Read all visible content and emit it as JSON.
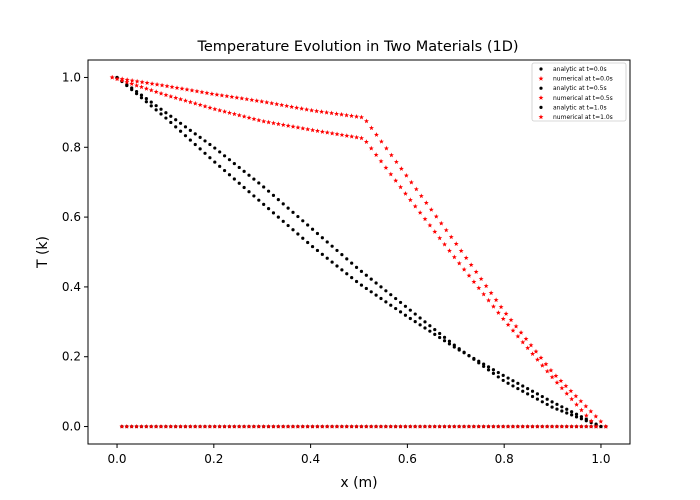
{
  "chart_data": {
    "type": "scatter",
    "title": "Temperature Evolution in Two Materials (1D)",
    "xlabel": "x (m)",
    "ylabel": "T (k)",
    "xlim": [
      -0.06,
      1.06
    ],
    "ylim": [
      -0.05,
      1.05
    ],
    "xticks": [
      "0.0",
      "0.2",
      "0.4",
      "0.6",
      "0.8",
      "1.0"
    ],
    "xtick_values": [
      0.0,
      0.2,
      0.4,
      0.6,
      0.8,
      1.0
    ],
    "yticks": [
      "0.0",
      "0.2",
      "0.4",
      "0.6",
      "0.8",
      "1.0"
    ],
    "ytick_values": [
      0.0,
      0.2,
      0.4,
      0.6,
      0.8,
      1.0
    ],
    "grid": false,
    "legend_position": "top-right",
    "series": [
      {
        "name": "analytic at t=0.0s",
        "kind": "analytic",
        "marker": "circle",
        "color": "#000000",
        "n": 100,
        "x0": 0.01,
        "x1": 1.01,
        "points": [
          [
            0.01,
            0
          ],
          [
            0.5,
            0
          ],
          [
            1.01,
            0
          ]
        ]
      },
      {
        "name": "numerical at t=0.0s",
        "kind": "numerical",
        "marker": "star",
        "color": "#ff0000",
        "n": 100,
        "x0": 0.01,
        "x1": 1.01,
        "points": [
          [
            0.01,
            0
          ],
          [
            0.5,
            0
          ],
          [
            1.01,
            0
          ]
        ]
      },
      {
        "name": "analytic at t=0.5s",
        "kind": "analytic",
        "marker": "circle",
        "color": "#000000",
        "n": 100,
        "x0": 0.0,
        "x1": 1.0,
        "points": [
          [
            0,
            1.0
          ],
          [
            0.1,
            0.9
          ],
          [
            0.2,
            0.8
          ],
          [
            0.3,
            0.69
          ],
          [
            0.4,
            0.57
          ],
          [
            0.5,
            0.45
          ],
          [
            0.6,
            0.34
          ],
          [
            0.7,
            0.23
          ],
          [
            0.8,
            0.13
          ],
          [
            0.9,
            0.055
          ],
          [
            1.0,
            0.0
          ]
        ]
      },
      {
        "name": "numerical at t=0.5s",
        "kind": "numerical",
        "marker": "star",
        "color": "#ff0000",
        "n": 100,
        "x0": -0.01,
        "x1": 1.01,
        "points": [
          [
            -0.01,
            1.0
          ],
          [
            0.1,
            0.976
          ],
          [
            0.2,
            0.952
          ],
          [
            0.3,
            0.931
          ],
          [
            0.4,
            0.906
          ],
          [
            0.51,
            0.885
          ],
          [
            0.6,
            0.715
          ],
          [
            0.7,
            0.525
          ],
          [
            0.8,
            0.33
          ],
          [
            0.9,
            0.155
          ],
          [
            1.01,
            0.0
          ]
        ]
      },
      {
        "name": "analytic at t=1.0s",
        "kind": "analytic",
        "marker": "circle",
        "color": "#000000",
        "n": 100,
        "x0": 0.0,
        "x1": 1.0,
        "points": [
          [
            0,
            1.0
          ],
          [
            0.1,
            0.885
          ],
          [
            0.2,
            0.76
          ],
          [
            0.3,
            0.64
          ],
          [
            0.4,
            0.52
          ],
          [
            0.5,
            0.41
          ],
          [
            0.6,
            0.315
          ],
          [
            0.7,
            0.225
          ],
          [
            0.8,
            0.145
          ],
          [
            0.9,
            0.07
          ],
          [
            1.0,
            0.0
          ]
        ]
      },
      {
        "name": "numerical at t=1.0s",
        "kind": "numerical",
        "marker": "star",
        "color": "#ff0000",
        "n": 100,
        "x0": -0.01,
        "x1": 0.99,
        "points": [
          [
            -0.01,
            1.0
          ],
          [
            0.1,
            0.95
          ],
          [
            0.2,
            0.91
          ],
          [
            0.3,
            0.875
          ],
          [
            0.4,
            0.85
          ],
          [
            0.51,
            0.825
          ],
          [
            0.6,
            0.66
          ],
          [
            0.7,
            0.48
          ],
          [
            0.8,
            0.305
          ],
          [
            0.9,
            0.14
          ],
          [
            0.99,
            0.0
          ]
        ]
      }
    ]
  }
}
